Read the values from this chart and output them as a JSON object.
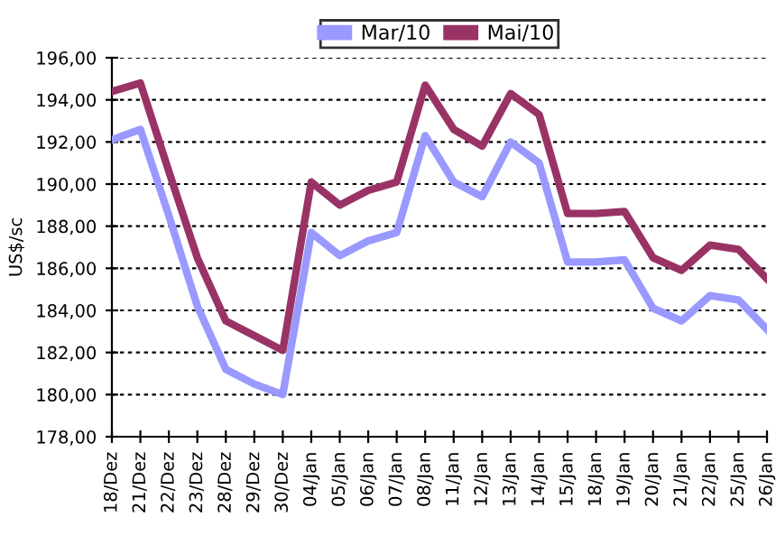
{
  "chart_data": {
    "type": "line",
    "ylabel": "US$/sc",
    "categories": [
      "18/Dez",
      "21/Dez",
      "22/Dez",
      "23/Dez",
      "28/Dez",
      "29/Dez",
      "30/Dez",
      "04/Jan",
      "05/Jan",
      "06/Jan",
      "07/Jan",
      "08/Jan",
      "11/Jan",
      "12/Jan",
      "13/Jan",
      "14/Jan",
      "15/Jan",
      "18/Jan",
      "19/Jan",
      "20/Jan",
      "21/Jan",
      "22/Jan",
      "25/Jan",
      "26/Jan"
    ],
    "series": [
      {
        "name": "Mar/10",
        "color": "#9999ff",
        "values": [
          192.1,
          192.6,
          188.5,
          184.2,
          181.2,
          180.5,
          180.0,
          187.7,
          186.6,
          187.3,
          187.7,
          192.3,
          190.1,
          189.4,
          192.0,
          191.0,
          186.3,
          186.3,
          186.4,
          184.1,
          183.5,
          184.7,
          184.5,
          183.1
        ]
      },
      {
        "name": "Mai/10",
        "color": "#993366",
        "values": [
          194.4,
          194.8,
          190.6,
          186.5,
          183.5,
          182.8,
          182.1,
          190.1,
          189.0,
          189.7,
          190.1,
          194.7,
          192.6,
          191.8,
          194.3,
          193.3,
          188.6,
          188.6,
          188.7,
          186.5,
          185.9,
          187.1,
          186.9,
          185.5
        ]
      }
    ],
    "ylim": [
      178,
      196
    ],
    "yticks": [
      {
        "value": 178,
        "label": "178,00"
      },
      {
        "value": 180,
        "label": "180,00"
      },
      {
        "value": 182,
        "label": "182,00"
      },
      {
        "value": 184,
        "label": "184,00"
      },
      {
        "value": 186,
        "label": "186,00"
      },
      {
        "value": 188,
        "label": "188,00"
      },
      {
        "value": 190,
        "label": "190,00"
      },
      {
        "value": 192,
        "label": "192,00"
      },
      {
        "value": 194,
        "label": "194,00"
      },
      {
        "value": 196,
        "label": "196,00"
      }
    ],
    "grid": "y",
    "legend": "top",
    "marker": "none",
    "line_style": "solid"
  }
}
